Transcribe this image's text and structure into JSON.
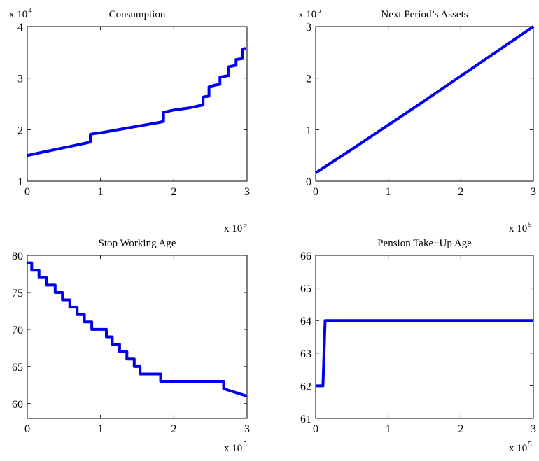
{
  "colors": {
    "series": "#0000ee",
    "axes": "#000000",
    "background": "#ffffff"
  },
  "chart_data": [
    {
      "type": "line",
      "title": "Consumption",
      "x_multiplier": {
        "base": "x 10",
        "exponent": "5"
      },
      "y_multiplier": {
        "base": "x 10",
        "exponent": "4"
      },
      "xlim": [
        0,
        3
      ],
      "ylim": [
        1,
        4
      ],
      "xticks": [
        0,
        1,
        2,
        3
      ],
      "yticks": [
        1,
        2,
        3,
        4
      ],
      "grid": false,
      "series": [
        {
          "x": [
            0,
            0.1,
            0.2,
            0.3,
            0.4,
            0.5,
            0.6,
            0.7,
            0.8,
            0.86,
            0.86,
            0.9,
            1.0,
            1.2,
            1.4,
            1.6,
            1.8,
            1.86,
            1.86,
            1.9,
            2.0,
            2.1,
            2.2,
            2.3,
            2.4,
            2.4,
            2.42,
            2.48,
            2.48,
            2.54,
            2.54,
            2.63,
            2.63,
            2.75,
            2.75,
            2.85,
            2.85,
            2.94,
            2.94,
            2.98
          ],
          "y": [
            1.5,
            1.53,
            1.56,
            1.59,
            1.62,
            1.65,
            1.68,
            1.71,
            1.74,
            1.76,
            1.91,
            1.92,
            1.94,
            1.99,
            2.04,
            2.09,
            2.14,
            2.16,
            2.34,
            2.35,
            2.38,
            2.4,
            2.42,
            2.45,
            2.48,
            2.63,
            2.64,
            2.65,
            2.83,
            2.84,
            2.86,
            2.88,
            3.02,
            3.05,
            3.22,
            3.25,
            3.36,
            3.38,
            3.56,
            3.58
          ]
        }
      ]
    },
    {
      "type": "line",
      "title": "Next Period’s Assets",
      "x_multiplier": {
        "base": "x 10",
        "exponent": "5"
      },
      "y_multiplier": {
        "base": "x 10",
        "exponent": "5"
      },
      "xlim": [
        0,
        3
      ],
      "ylim": [
        0,
        3
      ],
      "xticks": [
        0,
        1,
        2,
        3
      ],
      "yticks": [
        0,
        1,
        2,
        3
      ],
      "grid": false,
      "series": [
        {
          "x": [
            0,
            0.5,
            1.0,
            1.5,
            2.0,
            2.5,
            3.0
          ],
          "y": [
            0.16,
            0.62,
            1.09,
            1.56,
            2.04,
            2.52,
            3.0
          ]
        }
      ]
    },
    {
      "type": "line",
      "title": "Stop Working Age",
      "x_multiplier": {
        "base": "x 10",
        "exponent": "5"
      },
      "xlim": [
        0,
        3
      ],
      "ylim": [
        58,
        80
      ],
      "xticks": [
        0,
        1,
        2,
        3
      ],
      "yticks": [
        60,
        65,
        70,
        75,
        80
      ],
      "grid": false,
      "series": [
        {
          "x": [
            0,
            0.06,
            0.06,
            0.16,
            0.16,
            0.26,
            0.26,
            0.38,
            0.38,
            0.48,
            0.48,
            0.58,
            0.58,
            0.68,
            0.68,
            0.78,
            0.78,
            0.88,
            0.88,
            0.94,
            0.94,
            1.08,
            1.08,
            1.16,
            1.16,
            1.26,
            1.26,
            1.36,
            1.36,
            1.46,
            1.46,
            1.54,
            1.54,
            1.66,
            1.66,
            1.82,
            1.82,
            2.68,
            2.68,
            3.0
          ],
          "y": [
            79,
            79,
            78,
            78,
            77,
            77,
            76,
            76,
            75,
            75,
            74,
            74,
            73,
            73,
            72,
            72,
            71,
            71,
            70,
            70,
            70,
            70,
            69,
            69,
            68,
            68,
            67,
            67,
            66,
            66,
            65,
            65,
            64,
            64,
            64,
            64,
            63,
            63,
            62,
            61
          ]
        }
      ]
    },
    {
      "type": "line",
      "title": "Pension Take−Up Age",
      "x_multiplier": {
        "base": "x 10",
        "exponent": "5"
      },
      "xlim": [
        0,
        3
      ],
      "ylim": [
        61,
        66
      ],
      "xticks": [
        0,
        1,
        2,
        3
      ],
      "yticks": [
        61,
        62,
        63,
        64,
        65,
        66
      ],
      "grid": false,
      "series": [
        {
          "x": [
            0,
            0.1,
            0.13,
            3.0
          ],
          "y": [
            62,
            62,
            64,
            64
          ]
        }
      ]
    }
  ]
}
